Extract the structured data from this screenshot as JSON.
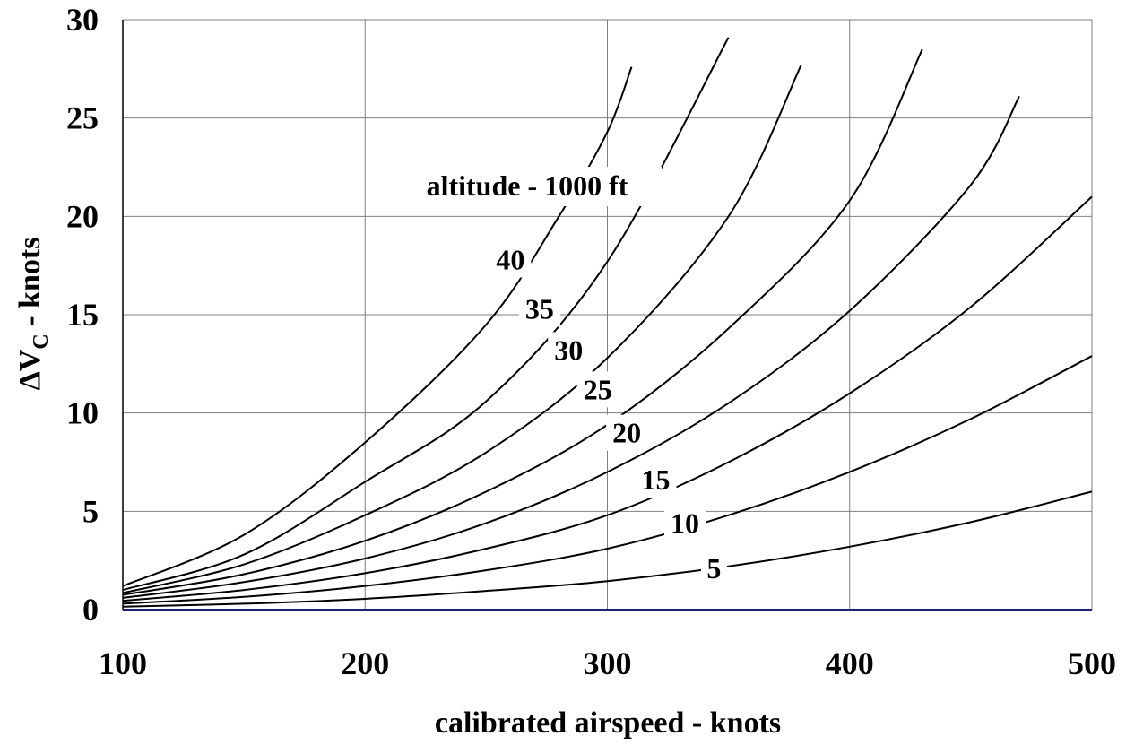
{
  "chart_data": {
    "type": "line",
    "xlabel": "calibrated airspeed - knots",
    "ylabel": {
      "prefix": "ΔV",
      "subscript": "C",
      "suffix": " - knots"
    },
    "annotation": "altitude - 1000 ft",
    "xlim": [
      100,
      500
    ],
    "ylim": [
      0,
      30
    ],
    "x_ticks": [
      100,
      200,
      300,
      400,
      500
    ],
    "y_ticks": [
      0,
      5,
      10,
      15,
      20,
      25,
      30
    ],
    "grid": true,
    "colors": {
      "curves": "#000000",
      "grid": "#7f7f7f",
      "baseline": "#1f1f7a",
      "axes": "#000000"
    },
    "series": [
      {
        "label": "5",
        "x": [
          100,
          150,
          200,
          250,
          300,
          350,
          400,
          450,
          500
        ],
        "y": [
          0.15,
          0.3,
          0.55,
          0.95,
          1.45,
          2.2,
          3.2,
          4.45,
          6.0
        ],
        "label_x": 344,
        "label_y": 2.1
      },
      {
        "label": "10",
        "x": [
          100,
          150,
          200,
          250,
          300,
          350,
          400,
          450,
          500
        ],
        "y": [
          0.3,
          0.65,
          1.2,
          2.0,
          3.1,
          4.8,
          7.0,
          9.7,
          12.9
        ],
        "label_x": 332,
        "label_y": 4.4
      },
      {
        "label": "15",
        "x": [
          100,
          150,
          200,
          250,
          300,
          350,
          400,
          450,
          500
        ],
        "y": [
          0.45,
          1.0,
          1.85,
          3.1,
          4.8,
          7.5,
          11.0,
          15.4,
          21.0
        ],
        "label_x": 320,
        "label_y": 6.6
      },
      {
        "label": "20",
        "x": [
          100,
          150,
          200,
          250,
          300,
          350,
          400,
          450,
          470
        ],
        "y": [
          0.6,
          1.4,
          2.6,
          4.4,
          7.0,
          10.5,
          15.2,
          21.6,
          26.1
        ],
        "label_x": 308,
        "label_y": 9.0
      },
      {
        "label": "25",
        "x": [
          100,
          150,
          200,
          250,
          300,
          350,
          400,
          430
        ],
        "y": [
          0.75,
          1.8,
          3.5,
          6.0,
          9.4,
          14.3,
          20.8,
          28.5
        ],
        "label_x": 296,
        "label_y": 11.2
      },
      {
        "label": "30",
        "x": [
          100,
          150,
          200,
          250,
          300,
          350,
          380
        ],
        "y": [
          0.85,
          2.3,
          4.8,
          8.0,
          12.8,
          20.0,
          27.7
        ],
        "label_x": 284,
        "label_y": 13.2
      },
      {
        "label": "35",
        "x": [
          100,
          150,
          200,
          250,
          300,
          350
        ],
        "y": [
          1.0,
          2.8,
          6.5,
          10.6,
          17.7,
          29.1
        ],
        "label_x": 272,
        "label_y": 15.3
      },
      {
        "label": "40",
        "x": [
          100,
          150,
          200,
          250,
          280,
          300,
          310
        ],
        "y": [
          1.2,
          3.8,
          8.5,
          14.5,
          20.0,
          24.3,
          27.6
        ],
        "label_x": 260,
        "label_y": 17.8
      }
    ]
  }
}
